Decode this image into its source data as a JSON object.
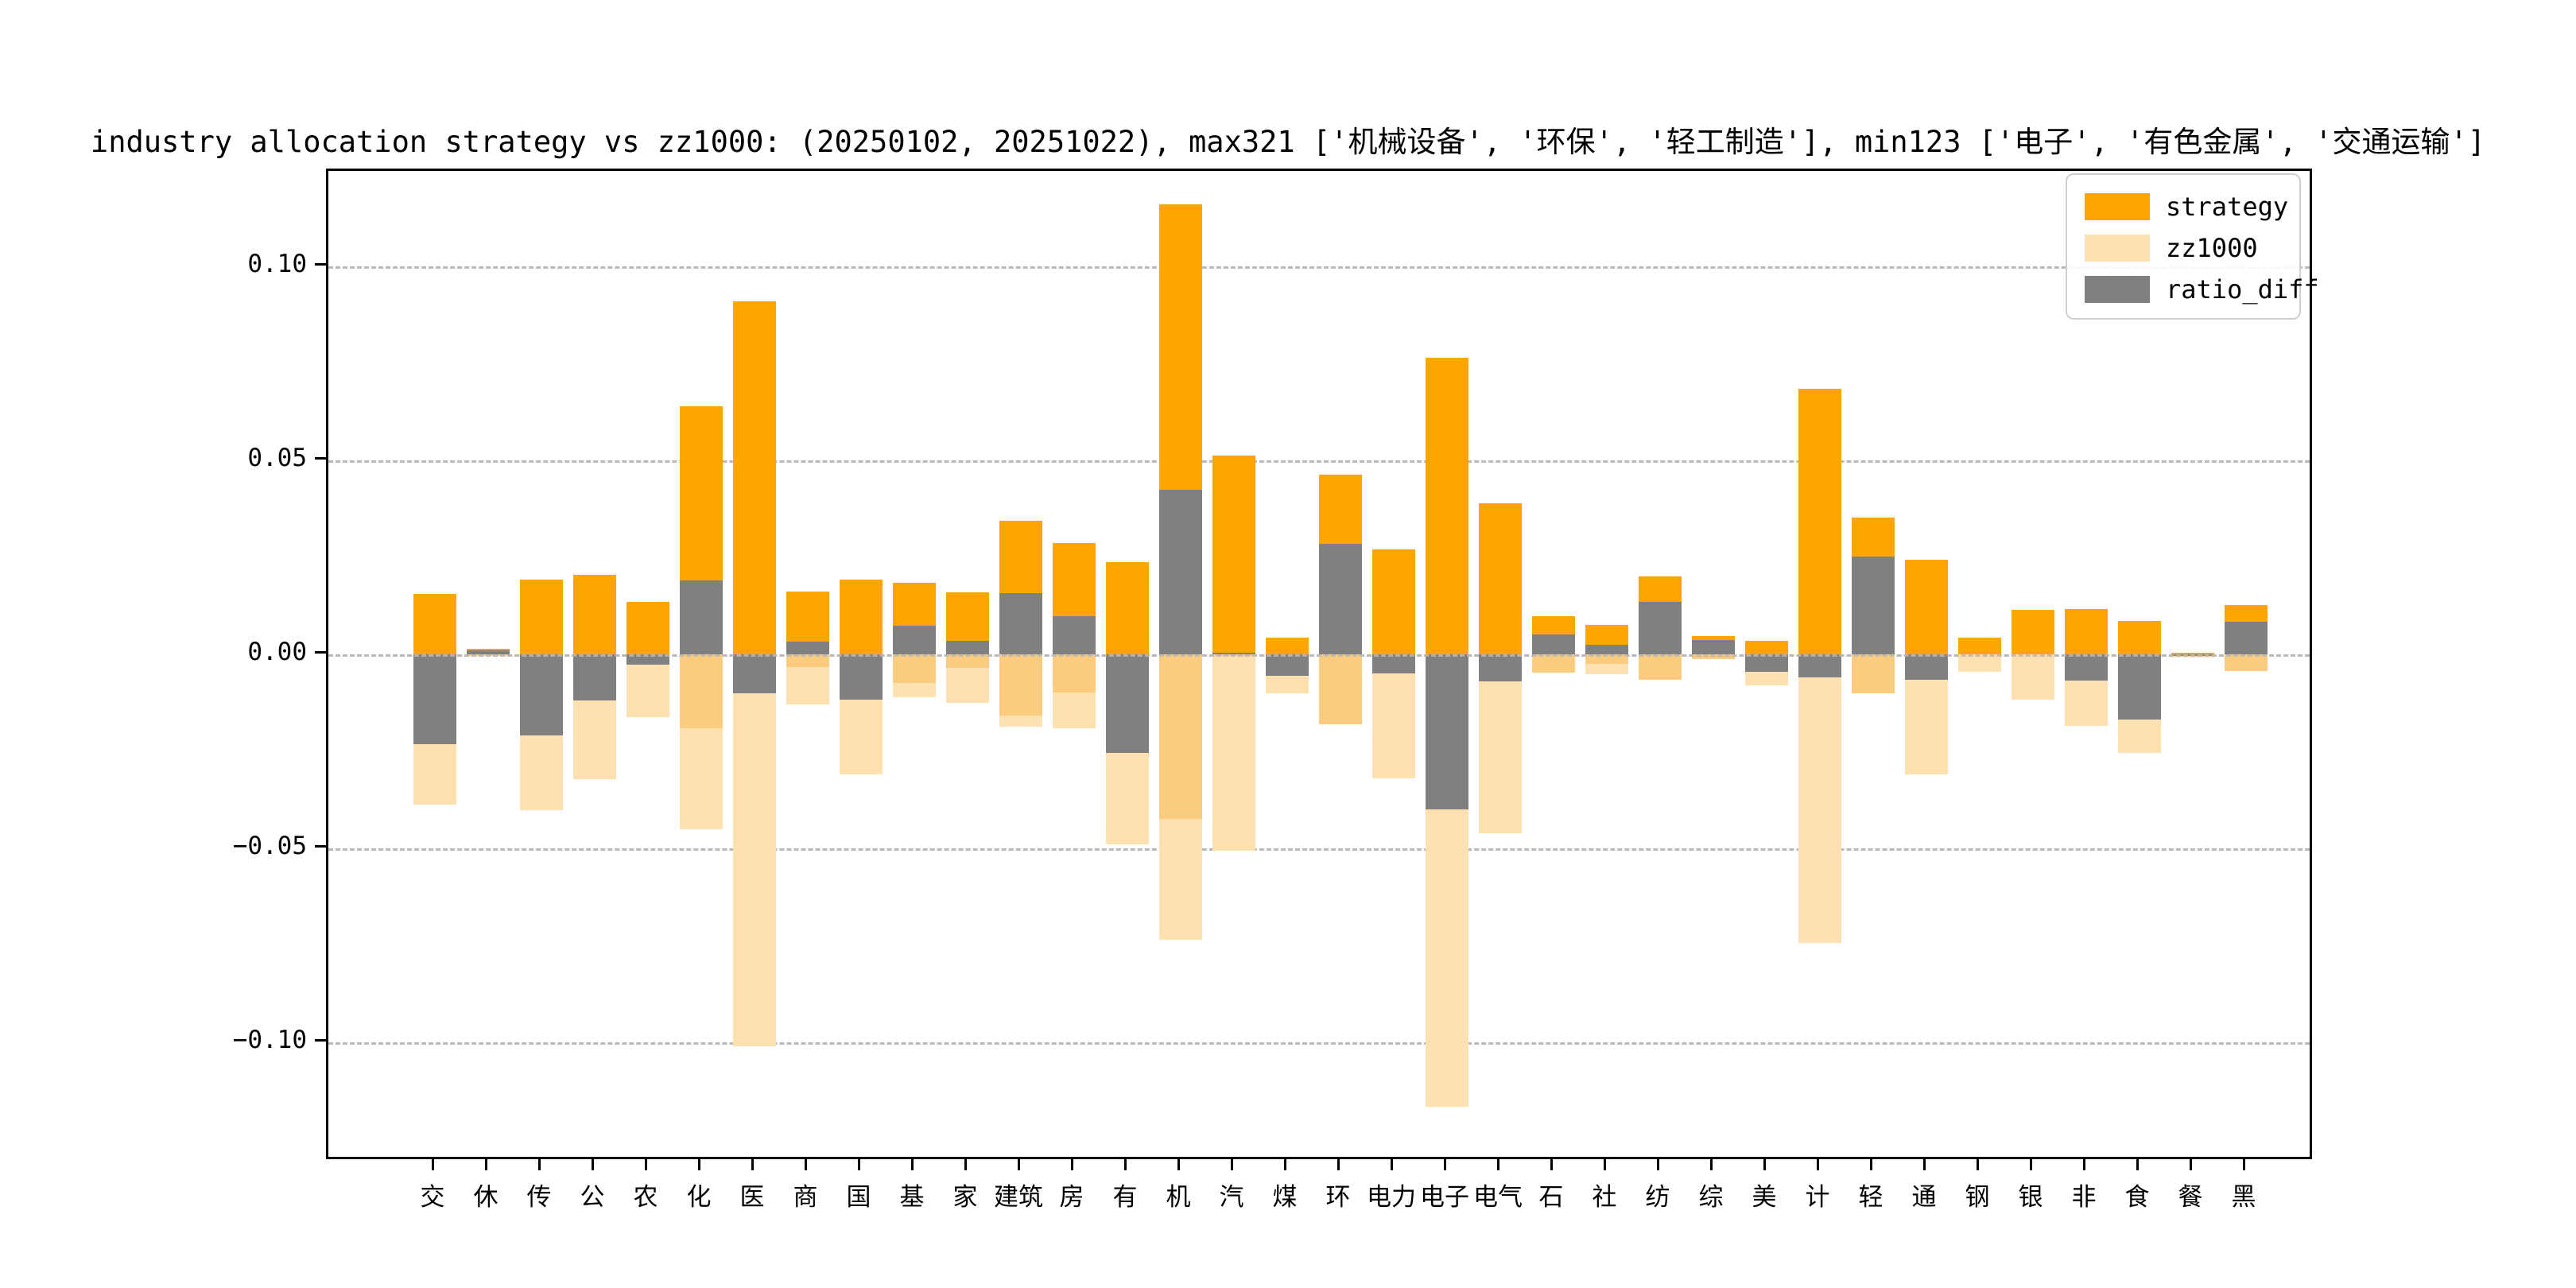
{
  "chart_data": {
    "type": "bar",
    "title": "industry allocation strategy vs zz1000: (20250102, 20251022), max321 ['机械设备', '环保', '轻工制造'], min123 ['电子', '有色金属', '交通运输']",
    "categories": [
      "交",
      "休",
      "传",
      "公",
      "农",
      "化",
      "医",
      "商",
      "国",
      "基",
      "家",
      "建筑",
      "房",
      "有",
      "机",
      "汽",
      "煤",
      "环",
      "电力",
      "电子",
      "电气",
      "石",
      "社",
      "纺",
      "综",
      "美",
      "计",
      "轻",
      "通",
      "钢",
      "银",
      "非",
      "食",
      "餐",
      "黑"
    ],
    "series": [
      {
        "name": "strategy",
        "values": [
          0.0156,
          0.0015,
          0.0193,
          0.0204,
          0.0135,
          0.064,
          0.091,
          0.0162,
          0.0193,
          0.0184,
          0.0159,
          0.0344,
          0.0288,
          0.0237,
          0.116,
          0.0512,
          0.0044,
          0.0464,
          0.027,
          0.0765,
          0.039,
          0.0099,
          0.0075,
          0.02,
          0.0048,
          0.0034,
          0.0684,
          0.0353,
          0.0244,
          0.0044,
          0.0114,
          0.0116,
          0.0086,
          0.0004,
          0.0128
        ]
      },
      {
        "name": "zz1000_negated",
        "values": [
          -0.0388,
          -0.0005,
          -0.0401,
          -0.0322,
          -0.0162,
          -0.045,
          -0.101,
          -0.013,
          -0.0309,
          -0.0111,
          -0.0125,
          -0.0187,
          -0.019,
          -0.049,
          -0.0735,
          -0.0507,
          -0.01,
          -0.018,
          -0.032,
          -0.1165,
          -0.046,
          -0.0047,
          -0.0051,
          -0.0065,
          -0.0012,
          -0.0079,
          -0.0744,
          -0.01,
          -0.031,
          -0.0045,
          -0.0116,
          -0.0184,
          -0.0253,
          -0.0009,
          -0.0043
        ]
      },
      {
        "name": "ratio_diff",
        "values": [
          -0.0232,
          0.001,
          -0.0208,
          -0.0118,
          -0.0027,
          0.019,
          -0.01,
          0.0032,
          -0.0116,
          0.0073,
          0.0034,
          0.0157,
          0.0098,
          -0.0253,
          0.0425,
          0.0005,
          -0.0056,
          0.0284,
          -0.005,
          -0.04,
          -0.007,
          0.0052,
          0.0024,
          0.0135,
          0.0036,
          -0.0045,
          -0.006,
          0.0253,
          -0.0066,
          -0.0001,
          -0.0002,
          -0.0068,
          -0.0167,
          -0.0005,
          0.0085
        ]
      }
    ],
    "legend": [
      {
        "label": "strategy"
      },
      {
        "label": "zz1000"
      },
      {
        "label": "ratio_diff"
      }
    ],
    "legend_position": "upper right",
    "grid": "dashed horizontal",
    "yticks": [
      {
        "value": 0.1,
        "label": "0.10"
      },
      {
        "value": 0.05,
        "label": "0.05"
      },
      {
        "value": 0.0,
        "label": "0.00"
      },
      {
        "value": -0.05,
        "label": "−0.05"
      },
      {
        "value": -0.1,
        "label": "−0.10"
      }
    ],
    "ylim": [
      -0.1307,
      0.1246
    ],
    "xlabel": "",
    "ylabel": "",
    "colors": {
      "strategy": "#FFA500",
      "zz1000": "#FFE0B1",
      "overlap_band": "#FBCB7E",
      "ratio_diff": "#808080",
      "gridline": "#b9b9b9",
      "spine": "#000000"
    }
  }
}
